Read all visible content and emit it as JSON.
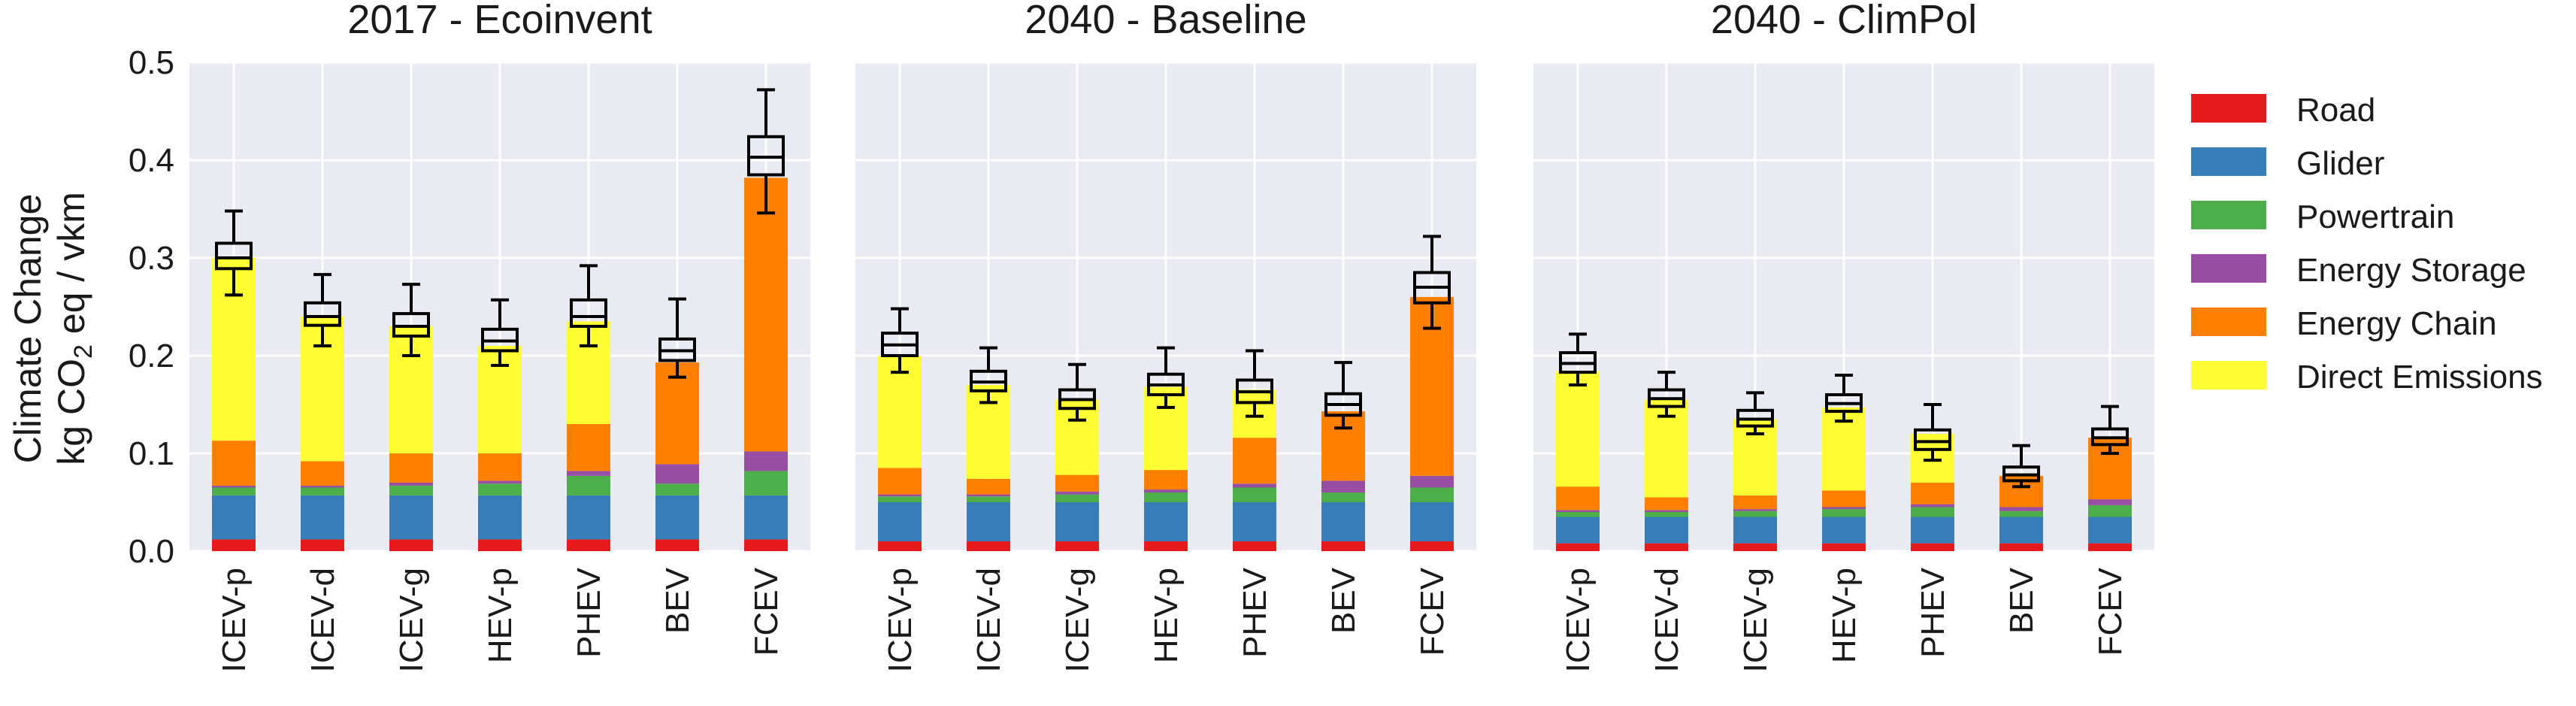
{
  "chart_data": {
    "type": "bar",
    "stacked": true,
    "has_boxplot_overlay": true,
    "ylabel_line1": "Climate Change",
    "ylabel_line2_prefix": "kg CO",
    "ylabel_line2_sub": "2",
    "ylabel_line2_suffix": " eq / vkm",
    "ylim": [
      0,
      0.5
    ],
    "yticks": [
      "0.0",
      "0.1",
      "0.2",
      "0.3",
      "0.4",
      "0.5"
    ],
    "grid": true,
    "legend_placement": "right",
    "categories": [
      "ICEV-p",
      "ICEV-d",
      "ICEV-g",
      "HEV-p",
      "PHEV",
      "BEV",
      "FCEV"
    ],
    "series": [
      {
        "name": "Road",
        "color": "#e41a1c"
      },
      {
        "name": "Glider",
        "color": "#377eb8"
      },
      {
        "name": "Powertrain",
        "color": "#4daf4a"
      },
      {
        "name": "Energy Storage",
        "color": "#984ea3"
      },
      {
        "name": "Energy Chain",
        "color": "#ff7f00"
      },
      {
        "name": "Direct Emissions",
        "color": "#ffff33"
      }
    ],
    "panels": [
      {
        "title": "2017 - Ecoinvent",
        "stacks": [
          [
            0.012,
            0.045,
            0.008,
            0.002,
            0.046,
            0.187
          ],
          [
            0.012,
            0.045,
            0.008,
            0.002,
            0.025,
            0.148
          ],
          [
            0.012,
            0.045,
            0.01,
            0.003,
            0.03,
            0.13
          ],
          [
            0.012,
            0.045,
            0.012,
            0.003,
            0.028,
            0.11
          ],
          [
            0.012,
            0.045,
            0.02,
            0.005,
            0.048,
            0.105
          ],
          [
            0.012,
            0.045,
            0.012,
            0.02,
            0.104,
            0.0
          ],
          [
            0.012,
            0.045,
            0.025,
            0.02,
            0.28,
            0.0
          ]
        ],
        "boxes": [
          {
            "whislo": 0.262,
            "q1": 0.289,
            "med": 0.3,
            "q3": 0.315,
            "whishi": 0.348
          },
          {
            "whislo": 0.21,
            "q1": 0.231,
            "med": 0.24,
            "q3": 0.254,
            "whishi": 0.283
          },
          {
            "whislo": 0.2,
            "q1": 0.22,
            "med": 0.23,
            "q3": 0.243,
            "whishi": 0.273
          },
          {
            "whislo": 0.19,
            "q1": 0.205,
            "med": 0.215,
            "q3": 0.227,
            "whishi": 0.257
          },
          {
            "whislo": 0.21,
            "q1": 0.23,
            "med": 0.24,
            "q3": 0.257,
            "whishi": 0.292
          },
          {
            "whislo": 0.178,
            "q1": 0.195,
            "med": 0.205,
            "q3": 0.217,
            "whishi": 0.258
          },
          {
            "whislo": 0.346,
            "q1": 0.385,
            "med": 0.403,
            "q3": 0.424,
            "whishi": 0.472
          }
        ]
      },
      {
        "title": "2040 - Baseline",
        "stacks": [
          [
            0.01,
            0.04,
            0.006,
            0.002,
            0.027,
            0.115
          ],
          [
            0.01,
            0.04,
            0.006,
            0.002,
            0.016,
            0.096
          ],
          [
            0.01,
            0.04,
            0.008,
            0.003,
            0.017,
            0.077
          ],
          [
            0.01,
            0.04,
            0.01,
            0.003,
            0.02,
            0.085
          ],
          [
            0.01,
            0.04,
            0.015,
            0.004,
            0.047,
            0.049
          ],
          [
            0.01,
            0.04,
            0.01,
            0.012,
            0.071,
            0.0
          ],
          [
            0.01,
            0.04,
            0.015,
            0.012,
            0.183,
            0.0
          ]
        ],
        "boxes": [
          {
            "whislo": 0.183,
            "q1": 0.2,
            "med": 0.211,
            "q3": 0.223,
            "whishi": 0.248
          },
          {
            "whislo": 0.152,
            "q1": 0.164,
            "med": 0.173,
            "q3": 0.184,
            "whishi": 0.208
          },
          {
            "whislo": 0.134,
            "q1": 0.146,
            "med": 0.155,
            "q3": 0.165,
            "whishi": 0.191
          },
          {
            "whislo": 0.147,
            "q1": 0.16,
            "med": 0.17,
            "q3": 0.181,
            "whishi": 0.208
          },
          {
            "whislo": 0.138,
            "q1": 0.152,
            "med": 0.163,
            "q3": 0.175,
            "whishi": 0.205
          },
          {
            "whislo": 0.126,
            "q1": 0.139,
            "med": 0.15,
            "q3": 0.161,
            "whishi": 0.193
          },
          {
            "whislo": 0.228,
            "q1": 0.254,
            "med": 0.27,
            "q3": 0.285,
            "whishi": 0.322
          }
        ]
      },
      {
        "title": "2040 - ClimPol",
        "stacks": [
          [
            0.008,
            0.027,
            0.005,
            0.002,
            0.024,
            0.118
          ],
          [
            0.008,
            0.027,
            0.005,
            0.002,
            0.013,
            0.1
          ],
          [
            0.008,
            0.027,
            0.006,
            0.002,
            0.014,
            0.078
          ],
          [
            0.008,
            0.027,
            0.008,
            0.002,
            0.017,
            0.085
          ],
          [
            0.008,
            0.027,
            0.01,
            0.003,
            0.022,
            0.05
          ],
          [
            0.008,
            0.027,
            0.006,
            0.004,
            0.032,
            0.0
          ],
          [
            0.008,
            0.027,
            0.012,
            0.006,
            0.063,
            0.0
          ]
        ],
        "boxes": [
          {
            "whislo": 0.17,
            "q1": 0.183,
            "med": 0.192,
            "q3": 0.203,
            "whishi": 0.222
          },
          {
            "whislo": 0.138,
            "q1": 0.148,
            "med": 0.156,
            "q3": 0.165,
            "whishi": 0.183
          },
          {
            "whislo": 0.12,
            "q1": 0.128,
            "med": 0.135,
            "q3": 0.144,
            "whishi": 0.162
          },
          {
            "whislo": 0.133,
            "q1": 0.143,
            "med": 0.151,
            "q3": 0.16,
            "whishi": 0.18
          },
          {
            "whislo": 0.093,
            "q1": 0.104,
            "med": 0.112,
            "q3": 0.124,
            "whishi": 0.15
          },
          {
            "whislo": 0.066,
            "q1": 0.072,
            "med": 0.078,
            "q3": 0.086,
            "whishi": 0.108
          },
          {
            "whislo": 0.1,
            "q1": 0.109,
            "med": 0.116,
            "q3": 0.125,
            "whishi": 0.148
          }
        ]
      }
    ]
  }
}
